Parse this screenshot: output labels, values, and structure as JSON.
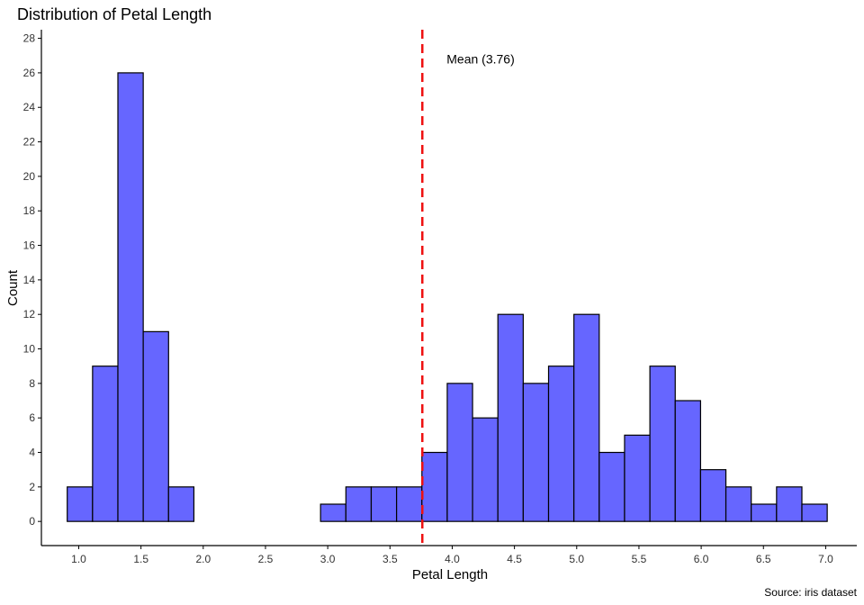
{
  "chart_data": {
    "type": "bar",
    "title": "Distribution of Petal Length",
    "xlabel": "Petal Length",
    "ylabel": "Count",
    "caption": "Source: iris dataset",
    "bin_width": 0.2035,
    "bins": [
      {
        "x0": 0.9075,
        "count": 2
      },
      {
        "x0": 1.111,
        "count": 9
      },
      {
        "x0": 1.3145,
        "count": 26
      },
      {
        "x0": 1.518,
        "count": 11
      },
      {
        "x0": 1.7215,
        "count": 2
      },
      {
        "x0": 1.925,
        "count": 0
      },
      {
        "x0": 2.1285,
        "count": 0
      },
      {
        "x0": 2.332,
        "count": 0
      },
      {
        "x0": 2.5355,
        "count": 0
      },
      {
        "x0": 2.739,
        "count": 0
      },
      {
        "x0": 2.9425,
        "count": 1
      },
      {
        "x0": 3.146,
        "count": 2
      },
      {
        "x0": 3.3495,
        "count": 2
      },
      {
        "x0": 3.553,
        "count": 2
      },
      {
        "x0": 3.7565,
        "count": 4
      },
      {
        "x0": 3.96,
        "count": 8
      },
      {
        "x0": 4.1635,
        "count": 6
      },
      {
        "x0": 4.367,
        "count": 12
      },
      {
        "x0": 4.5705,
        "count": 8
      },
      {
        "x0": 4.774,
        "count": 9
      },
      {
        "x0": 4.9775,
        "count": 12
      },
      {
        "x0": 5.181,
        "count": 4
      },
      {
        "x0": 5.3845,
        "count": 5
      },
      {
        "x0": 5.588,
        "count": 9
      },
      {
        "x0": 5.7915,
        "count": 7
      },
      {
        "x0": 5.995,
        "count": 3
      },
      {
        "x0": 6.1985,
        "count": 2
      },
      {
        "x0": 6.402,
        "count": 1
      },
      {
        "x0": 6.6055,
        "count": 2
      },
      {
        "x0": 6.809,
        "count": 1
      }
    ],
    "mean": 3.76,
    "mean_label": "Mean (3.76)",
    "x_ticks": [
      "1.0",
      "1.5",
      "2.0",
      "2.5",
      "3.0",
      "3.5",
      "4.0",
      "4.5",
      "5.0",
      "5.5",
      "6.0",
      "6.5",
      "7.0"
    ],
    "y_ticks": [
      "0",
      "2",
      "4",
      "6",
      "8",
      "10",
      "12",
      "14",
      "16",
      "18",
      "20",
      "22",
      "24",
      "26",
      "28"
    ],
    "xlim": [
      0.7,
      7.25
    ],
    "ylim": [
      -1.4,
      28.5
    ],
    "grid": false,
    "colors": {
      "bar_fill": "#6666ff",
      "bar_stroke": "#000000",
      "mean_line": "#ee1111",
      "axis": "#000000"
    }
  }
}
